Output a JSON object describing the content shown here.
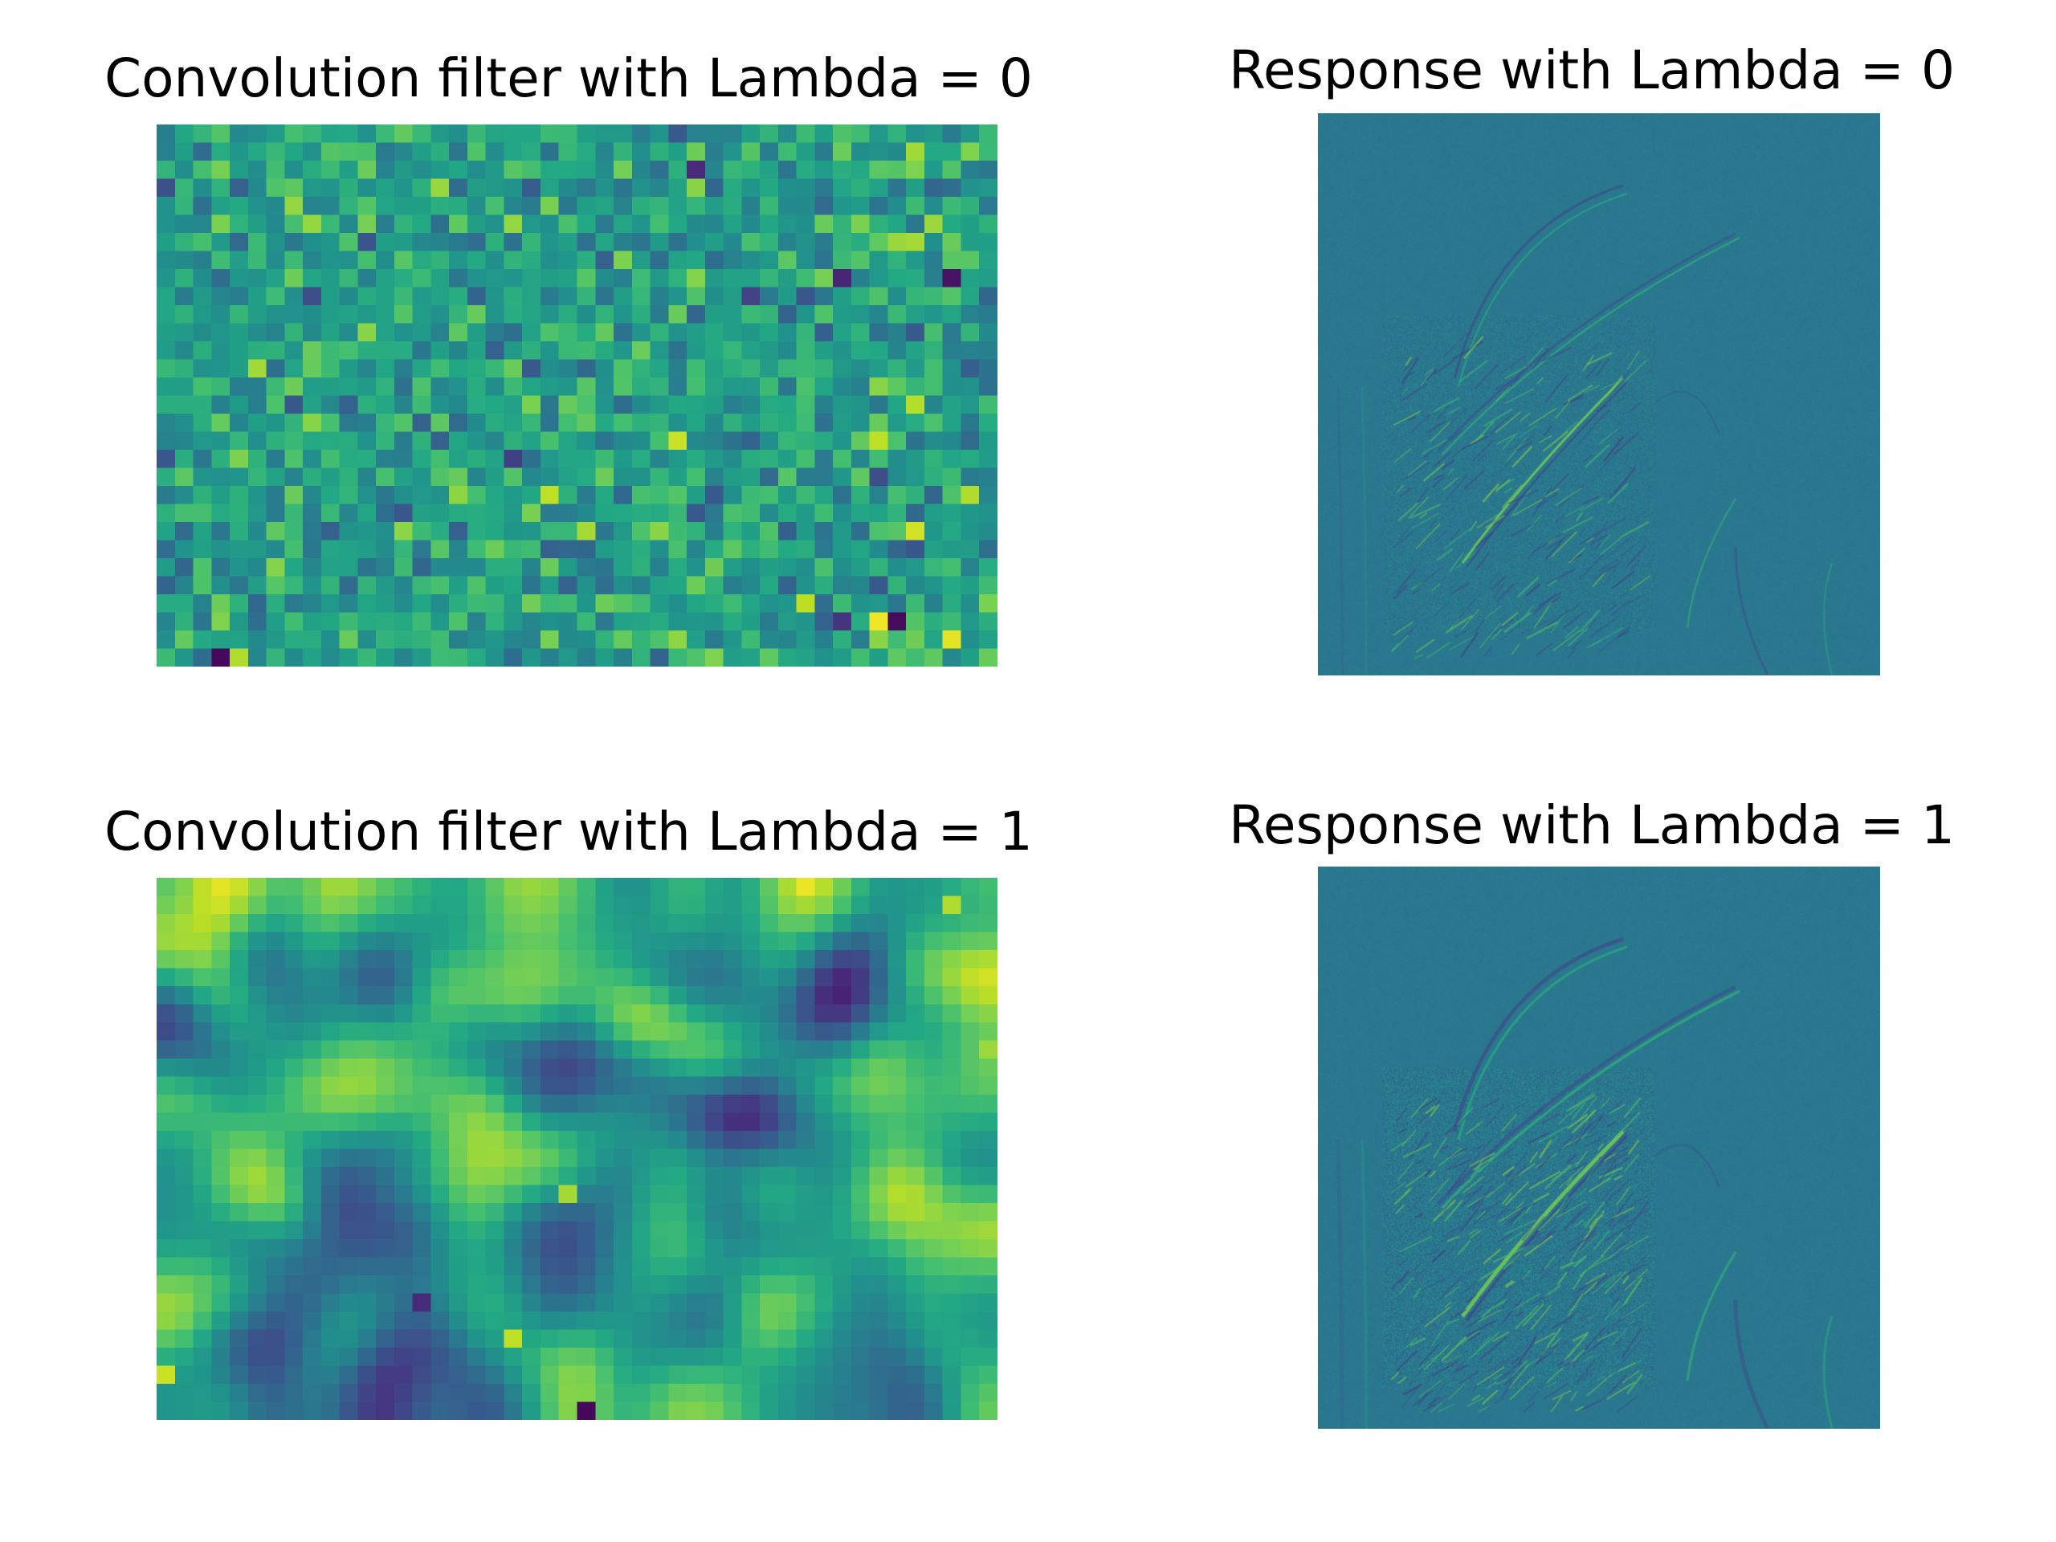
{
  "figure": {
    "title_filter_0": "Convolution filter with Lambda = 0",
    "title_response_0": "Response with Lambda = 0",
    "title_filter_1": "Convolution filter with Lambda = 1",
    "title_response_1": "Response with Lambda = 1"
  },
  "chart_data": [
    {
      "type": "heatmap",
      "title": "Convolution filter with Lambda = 0",
      "lambda": 0,
      "colormap": "viridis",
      "axes": "off",
      "rows": 30,
      "cols": 46,
      "texture": "uncorrelated noise",
      "highlights": [
        {
          "row": 29,
          "col": 3,
          "value": 0.02
        },
        {
          "row": 29,
          "col": 4,
          "value": 0.88
        },
        {
          "row": 27,
          "col": 39,
          "value": 0.98
        },
        {
          "row": 27,
          "col": 40,
          "value": 0.03
        },
        {
          "row": 28,
          "col": 43,
          "value": 0.96
        },
        {
          "row": 22,
          "col": 41,
          "value": 0.93
        },
        {
          "row": 8,
          "col": 43,
          "value": 0.05
        },
        {
          "row": 8,
          "col": 37,
          "value": 0.1
        },
        {
          "row": 2,
          "col": 29,
          "value": 0.12
        },
        {
          "row": 3,
          "col": 29,
          "value": 0.82
        },
        {
          "row": 5,
          "col": 8,
          "value": 0.84
        },
        {
          "row": 5,
          "col": 42,
          "value": 0.85
        },
        {
          "row": 17,
          "col": 39,
          "value": 0.9
        },
        {
          "row": 20,
          "col": 44,
          "value": 0.88
        }
      ]
    },
    {
      "type": "heatmap",
      "title": "Response with Lambda = 0",
      "lambda": 0,
      "colormap": "viridis",
      "axes": "off",
      "rows": 512,
      "cols": 512,
      "texture": "faint edge response of the input image"
    },
    {
      "type": "heatmap",
      "title": "Convolution filter with Lambda = 1",
      "lambda": 1,
      "colormap": "viridis",
      "axes": "off",
      "rows": 30,
      "cols": 46,
      "texture": "spatially smooth blobs",
      "highlights": [
        {
          "row": 0,
          "col": 35,
          "value": 0.97
        },
        {
          "row": 1,
          "col": 43,
          "value": 0.88
        },
        {
          "row": 9,
          "col": 45,
          "value": 0.85
        },
        {
          "row": 17,
          "col": 22,
          "value": 0.86
        },
        {
          "row": 25,
          "col": 19,
          "value": 0.9
        },
        {
          "row": 27,
          "col": 0,
          "value": 0.92
        },
        {
          "row": 29,
          "col": 23,
          "value": 0.02
        },
        {
          "row": 23,
          "col": 14,
          "value": 0.12
        }
      ]
    },
    {
      "type": "heatmap",
      "title": "Response with Lambda = 1",
      "lambda": 1,
      "colormap": "viridis",
      "axes": "off",
      "rows": 512,
      "cols": 512,
      "texture": "stronger edge response of the input image"
    }
  ]
}
